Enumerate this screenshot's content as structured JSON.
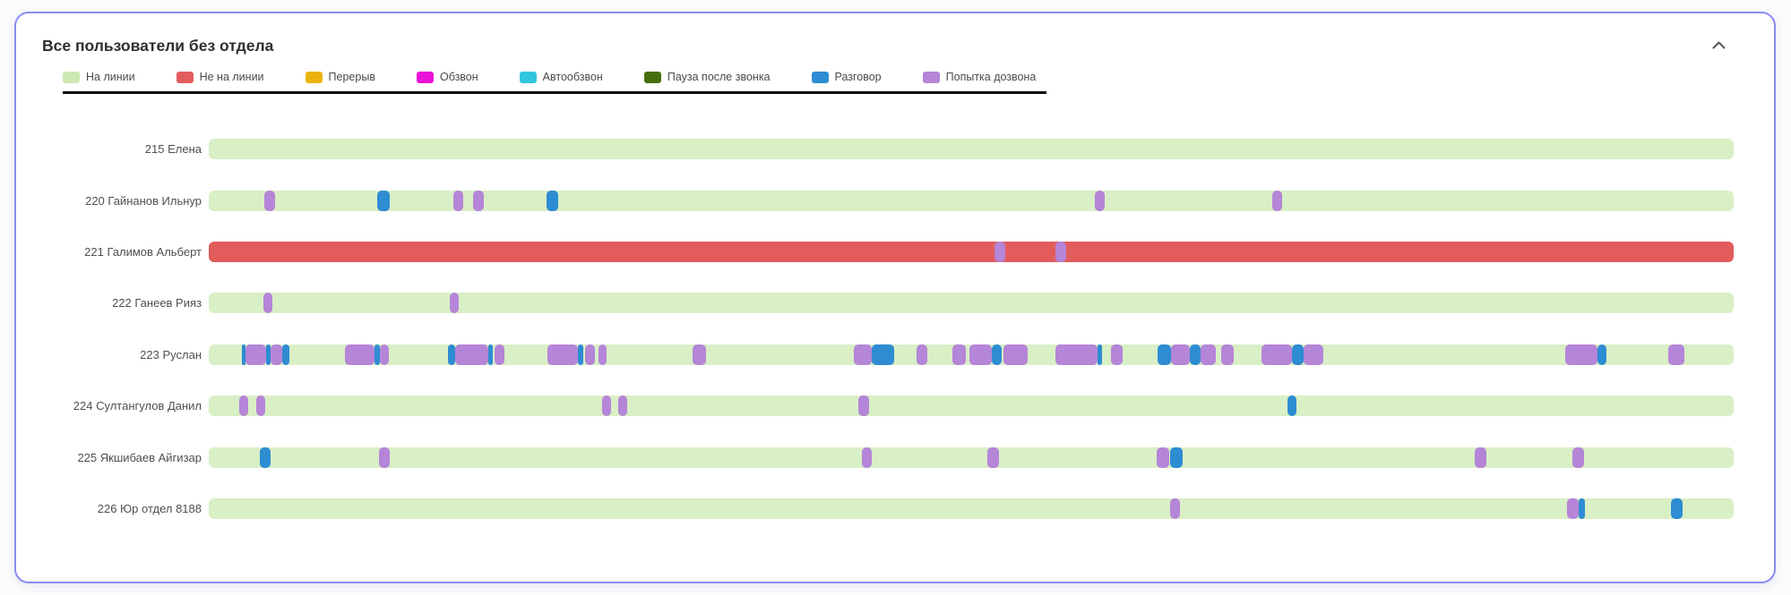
{
  "panel": {
    "title": "Все пользователи без отдела",
    "collapse_icon": "chevron-up",
    "border_color": "#8a8cf0"
  },
  "legend": [
    {
      "key": "online",
      "label": "На линии",
      "color": "#cde8b2"
    },
    {
      "key": "offline",
      "label": "Не на линии",
      "color": "#e25d5d"
    },
    {
      "key": "break",
      "label": "Перерыв",
      "color": "#eab40c"
    },
    {
      "key": "dialing",
      "label": "Обзвон",
      "color": "#e913d8"
    },
    {
      "key": "autodial",
      "label": "Автообзвон",
      "color": "#31c6de"
    },
    {
      "key": "postcall",
      "label": "Пауза после звонка",
      "color": "#486e0e"
    },
    {
      "key": "talk",
      "label": "Разговор",
      "color": "#2e8cd2"
    },
    {
      "key": "attempt",
      "label": "Попытка дозвона",
      "color": "#b585d8"
    }
  ],
  "chart_data": {
    "type": "timeline",
    "title": "Все пользователи без отдела",
    "xlabel": "",
    "ylabel": "",
    "axis_note": "no time axis labels visible; segment positions given as percent of bar span",
    "base_colors": {
      "online": "#d9efc6",
      "offline": "#e25c5c"
    },
    "segment_colors": {
      "attempt": "#b585d8",
      "talk": "#2e8cd2"
    },
    "segment_labels": {
      "attempt": "Попытка дозвона",
      "talk": "Разговор"
    },
    "base_labels": {
      "online": "На линии",
      "offline": "Не на линии"
    },
    "rows": [
      {
        "label": "215 Елена",
        "base": "online",
        "segments": []
      },
      {
        "label": "220 Гайнанов Ильнур",
        "base": "online",
        "segments": [
          {
            "s": "attempt",
            "x": 3.64,
            "w": 0.7
          },
          {
            "s": "talk",
            "x": 11.05,
            "w": 0.82
          },
          {
            "s": "attempt",
            "x": 16.04,
            "w": 0.65
          },
          {
            "s": "attempt",
            "x": 17.33,
            "w": 0.71
          },
          {
            "s": "talk",
            "x": 22.15,
            "w": 0.76
          },
          {
            "s": "attempt",
            "x": 58.11,
            "w": 0.65
          },
          {
            "s": "attempt",
            "x": 69.74,
            "w": 0.65
          }
        ]
      },
      {
        "label": "221 Галимов Альберт",
        "base": "offline",
        "segments": [
          {
            "s": "attempt",
            "x": 51.53,
            "w": 0.71
          },
          {
            "s": "attempt",
            "x": 55.52,
            "w": 0.71
          }
        ]
      },
      {
        "label": "222 Ганеев Рияз",
        "base": "online",
        "segments": [
          {
            "s": "attempt",
            "x": 3.58,
            "w": 0.59
          },
          {
            "s": "attempt",
            "x": 15.8,
            "w": 0.59
          }
        ]
      },
      {
        "label": "223 Руслан",
        "base": "online",
        "segments": [
          {
            "s": "talk",
            "x": 2.17,
            "w": 0.24
          },
          {
            "s": "attempt",
            "x": 2.41,
            "w": 1.35
          },
          {
            "s": "talk",
            "x": 3.76,
            "w": 0.29
          },
          {
            "s": "attempt",
            "x": 4.05,
            "w": 0.76
          },
          {
            "s": "talk",
            "x": 4.82,
            "w": 0.47
          },
          {
            "s": "attempt",
            "x": 8.93,
            "w": 1.94
          },
          {
            "s": "talk",
            "x": 10.87,
            "w": 0.35
          },
          {
            "s": "attempt",
            "x": 11.22,
            "w": 0.59
          },
          {
            "s": "talk",
            "x": 15.69,
            "w": 0.47
          },
          {
            "s": "attempt",
            "x": 16.16,
            "w": 2.17
          },
          {
            "s": "talk",
            "x": 18.33,
            "w": 0.29
          },
          {
            "s": "attempt",
            "x": 18.74,
            "w": 0.65
          },
          {
            "s": "attempt",
            "x": 22.21,
            "w": 2.0
          },
          {
            "s": "talk",
            "x": 24.21,
            "w": 0.35
          },
          {
            "s": "attempt",
            "x": 24.68,
            "w": 0.65
          },
          {
            "s": "attempt",
            "x": 25.56,
            "w": 0.53
          },
          {
            "s": "attempt",
            "x": 31.73,
            "w": 0.88
          },
          {
            "s": "attempt",
            "x": 42.3,
            "w": 1.18
          },
          {
            "s": "talk",
            "x": 43.48,
            "w": 1.47
          },
          {
            "s": "attempt",
            "x": 46.42,
            "w": 0.71
          },
          {
            "s": "attempt",
            "x": 48.77,
            "w": 0.88
          },
          {
            "s": "attempt",
            "x": 49.88,
            "w": 1.47
          },
          {
            "s": "talk",
            "x": 51.35,
            "w": 0.65
          },
          {
            "s": "attempt",
            "x": 52.11,
            "w": 1.59
          },
          {
            "s": "attempt",
            "x": 55.52,
            "w": 2.76
          },
          {
            "s": "talk",
            "x": 58.28,
            "w": 0.29
          },
          {
            "s": "attempt",
            "x": 59.17,
            "w": 0.76
          },
          {
            "s": "talk",
            "x": 62.22,
            "w": 0.88
          },
          {
            "s": "attempt",
            "x": 63.1,
            "w": 1.23
          },
          {
            "s": "talk",
            "x": 64.34,
            "w": 0.71
          },
          {
            "s": "attempt",
            "x": 65.04,
            "w": 1.0
          },
          {
            "s": "attempt",
            "x": 66.39,
            "w": 0.82
          },
          {
            "s": "attempt",
            "x": 69.04,
            "w": 2.0
          },
          {
            "s": "talk",
            "x": 71.03,
            "w": 0.76
          },
          {
            "s": "attempt",
            "x": 71.8,
            "w": 1.29
          },
          {
            "s": "attempt",
            "x": 88.95,
            "w": 2.11
          },
          {
            "s": "talk",
            "x": 91.07,
            "w": 0.59
          },
          {
            "s": "attempt",
            "x": 95.71,
            "w": 1.06
          }
        ]
      },
      {
        "label": "224 Султангулов Данил",
        "base": "online",
        "segments": [
          {
            "s": "attempt",
            "x": 2.0,
            "w": 0.59
          },
          {
            "s": "attempt",
            "x": 3.11,
            "w": 0.59
          },
          {
            "s": "attempt",
            "x": 25.79,
            "w": 0.59
          },
          {
            "s": "attempt",
            "x": 26.85,
            "w": 0.59
          },
          {
            "s": "attempt",
            "x": 42.6,
            "w": 0.71
          },
          {
            "s": "talk",
            "x": 70.74,
            "w": 0.59
          }
        ]
      },
      {
        "label": "225 Якшибаев Айгизар",
        "base": "online",
        "segments": [
          {
            "s": "talk",
            "x": 3.35,
            "w": 0.71
          },
          {
            "s": "attempt",
            "x": 11.16,
            "w": 0.71
          },
          {
            "s": "attempt",
            "x": 42.83,
            "w": 0.65
          },
          {
            "s": "attempt",
            "x": 51.06,
            "w": 0.76
          },
          {
            "s": "attempt",
            "x": 62.16,
            "w": 0.82
          },
          {
            "s": "talk",
            "x": 63.04,
            "w": 0.82
          },
          {
            "s": "attempt",
            "x": 83.02,
            "w": 0.76
          },
          {
            "s": "attempt",
            "x": 89.42,
            "w": 0.76
          }
        ]
      },
      {
        "label": "226 Юр отдел 8188",
        "base": "online",
        "segments": [
          {
            "s": "attempt",
            "x": 63.04,
            "w": 0.65
          },
          {
            "s": "attempt",
            "x": 89.07,
            "w": 0.76
          },
          {
            "s": "talk",
            "x": 89.84,
            "w": 0.41
          },
          {
            "s": "talk",
            "x": 95.89,
            "w": 0.76
          }
        ]
      }
    ]
  }
}
